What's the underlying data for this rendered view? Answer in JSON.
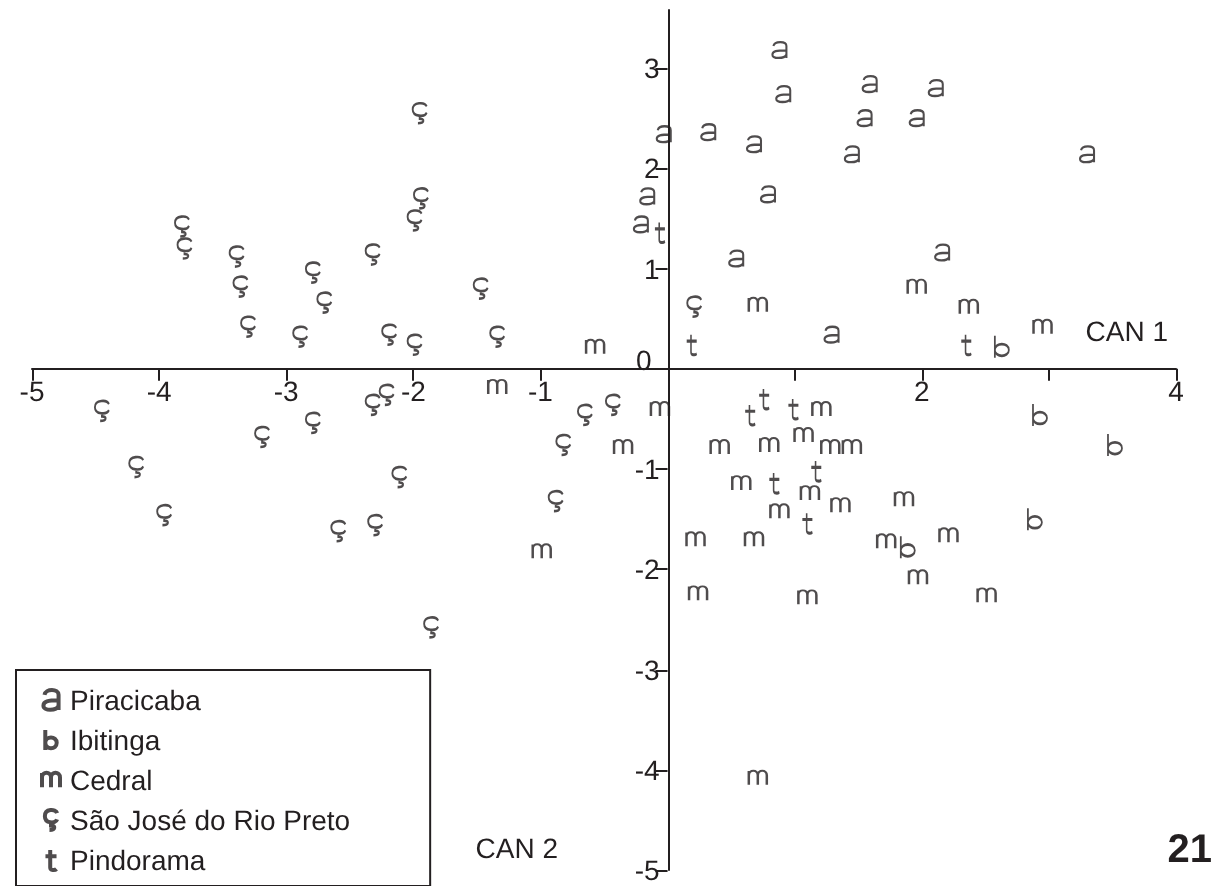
{
  "chart_data": {
    "type": "scatter",
    "xlabel": "CAN 1",
    "ylabel": "CAN 2",
    "annotations": [
      "21"
    ],
    "xlim": [
      -5,
      4
    ],
    "xticks": [
      -5,
      -4,
      -3,
      -2,
      -1,
      {
        "value": 0,
        "label": null
      },
      {
        "value": 1,
        "label": null
      },
      2,
      {
        "value": 3,
        "label": null
      },
      4
    ],
    "ylim": [
      -5,
      3.58
    ],
    "yticks": [
      -5,
      -4,
      -3,
      -2,
      -1,
      0,
      1,
      2,
      3
    ],
    "legend": "bottom left",
    "series": [
      {
        "name": "Piracicaba",
        "color": "#231f20",
        "x": [
          0.88,
          0.91,
          1.59,
          2.11,
          1.55,
          1.96,
          -0.03,
          0.32,
          0.68,
          1.45,
          3.3,
          -0.16,
          0.79,
          -0.21,
          0.54,
          2.16,
          1.29
        ],
        "values": [
          3.18,
          2.74,
          2.84,
          2.8,
          2.5,
          2.5,
          2.34,
          2.36,
          2.24,
          2.14,
          2.14,
          1.72,
          1.74,
          1.44,
          1.1,
          1.16,
          0.34
        ]
      },
      {
        "name": "Ibitinga",
        "color": "#231f20",
        "x": [
          2.63,
          2.93,
          3.52,
          2.89,
          1.89
        ],
        "values": [
          0.22,
          -0.46,
          -0.76,
          -1.5,
          -1.78
        ]
      },
      {
        "name": "Cedral",
        "color": "#231f20",
        "x": [
          -0.57,
          -1.34,
          -0.99,
          -0.35,
          -0.06,
          0.71,
          1.96,
          2.37,
          2.95,
          1.21,
          0.41,
          0.8,
          1.07,
          1.28,
          1.45,
          0.58,
          1.12,
          0.88,
          1.36,
          1.86,
          0.22,
          0.68,
          1.72,
          2.21,
          0.24,
          1.1,
          1.97,
          2.51,
          0.71
        ],
        "values": [
          0.22,
          -0.18,
          -1.82,
          -0.78,
          -0.4,
          0.64,
          0.82,
          0.62,
          0.42,
          -0.4,
          -0.78,
          -0.76,
          -0.66,
          -0.78,
          -0.78,
          -1.14,
          -1.24,
          -1.42,
          -1.36,
          -1.3,
          -1.7,
          -1.7,
          -1.72,
          -1.66,
          -2.24,
          -2.28,
          -2.08,
          -2.26,
          -4.08
        ]
      },
      {
        "name": "São José do Rio Preto",
        "color": "#231f20",
        "x": [
          -1.95,
          -1.94,
          -1.99,
          -3.82,
          -3.8,
          -3.39,
          -3.36,
          -2.79,
          -2.7,
          -2.32,
          -1.47,
          -3.3,
          -2.89,
          -2.19,
          -1.99,
          -1.34,
          -4.45,
          -3.19,
          -2.79,
          -2.32,
          -2.21,
          -0.65,
          -0.43,
          -0.82,
          -4.18,
          -3.96,
          -2.11,
          -2.59,
          -2.3,
          -0.88,
          -1.86,
          0.21
        ],
        "values": [
          2.55,
          1.7,
          1.48,
          1.42,
          1.2,
          1.12,
          0.82,
          0.96,
          0.66,
          1.14,
          0.8,
          0.42,
          0.32,
          0.34,
          0.24,
          0.32,
          -0.42,
          -0.68,
          -0.54,
          -0.36,
          -0.26,
          -0.46,
          -0.36,
          -0.76,
          -0.98,
          -1.46,
          -1.08,
          -1.62,
          -1.56,
          -1.32,
          -2.58,
          0.62
        ]
      },
      {
        "name": "Pindorama",
        "color": "#231f20",
        "x": [
          -0.06,
          0.19,
          2.35,
          0.65,
          0.76,
          0.99,
          0.84,
          1.17,
          1.1
        ],
        "values": [
          1.36,
          0.24,
          0.24,
          -0.46,
          -0.3,
          -0.4,
          -1.14,
          -1.02,
          -1.54
        ]
      }
    ]
  }
}
